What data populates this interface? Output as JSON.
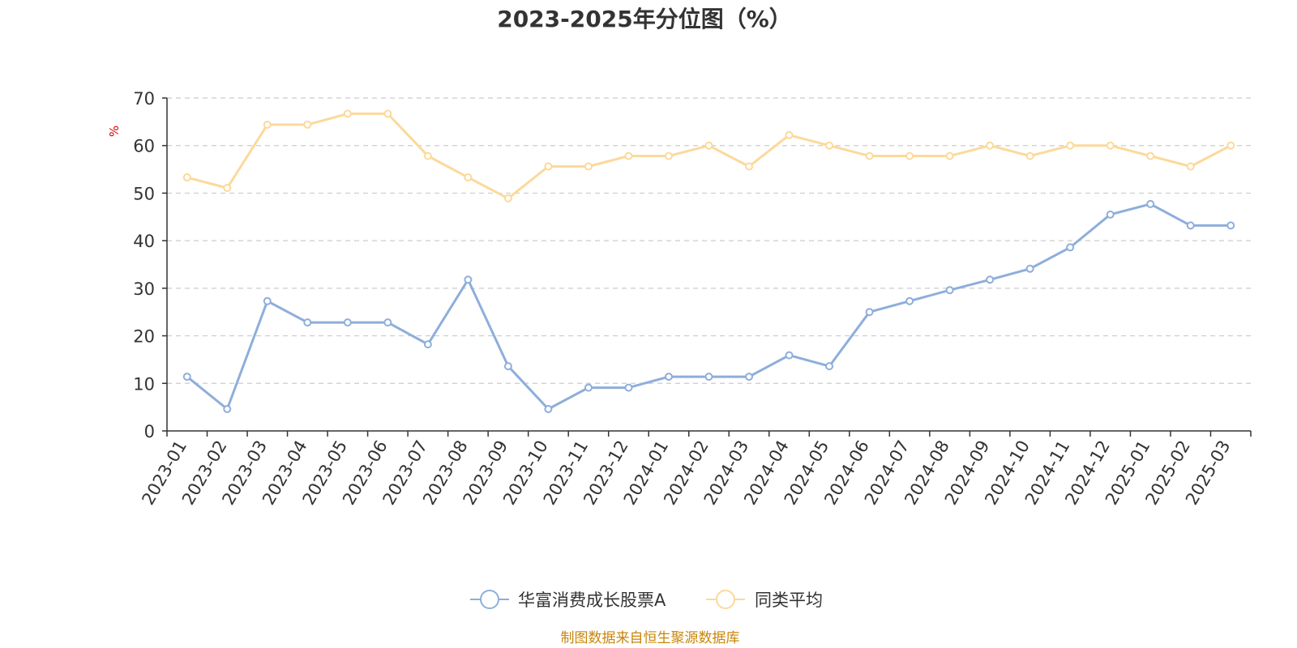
{
  "chart_data": {
    "type": "line",
    "title": "2023-2025年分位图（%）",
    "y_unit": "%",
    "ylim": [
      0,
      70
    ],
    "y_ticks": [
      0,
      10,
      20,
      30,
      40,
      50,
      60,
      70
    ],
    "grid": "horizontal-dashed",
    "legend_position": "bottom-center",
    "categories": [
      "2023-01",
      "2023-02",
      "2023-03",
      "2023-04",
      "2023-05",
      "2023-06",
      "2023-07",
      "2023-08",
      "2023-09",
      "2023-10",
      "2023-11",
      "2023-12",
      "2024-01",
      "2024-02",
      "2024-03",
      "2024-04",
      "2024-05",
      "2024-06",
      "2024-07",
      "2024-08",
      "2024-09",
      "2024-10",
      "2024-11",
      "2024-12",
      "2025-01",
      "2025-02",
      "2025-03"
    ],
    "series": [
      {
        "name": "华富消费成长股票A",
        "color": "#8eaedb",
        "values": [
          11.4,
          4.6,
          27.3,
          22.8,
          22.8,
          22.8,
          18.2,
          31.8,
          13.6,
          4.6,
          9.1,
          9.1,
          11.4,
          11.4,
          11.4,
          15.9,
          13.6,
          25.0,
          27.3,
          29.6,
          31.8,
          34.1,
          38.6,
          45.5,
          47.7,
          43.2,
          43.2
        ]
      },
      {
        "name": "同类平均",
        "color": "#fcd99a",
        "values": [
          53.3,
          51.1,
          64.4,
          64.4,
          66.7,
          66.7,
          57.8,
          53.3,
          48.9,
          55.6,
          55.6,
          57.8,
          57.8,
          60.0,
          55.6,
          62.2,
          60.0,
          57.8,
          57.8,
          57.8,
          60.0,
          57.8,
          60.0,
          60.0,
          57.8,
          55.6,
          60.0
        ]
      }
    ],
    "source": "制图数据来自恒生聚源数据库"
  }
}
